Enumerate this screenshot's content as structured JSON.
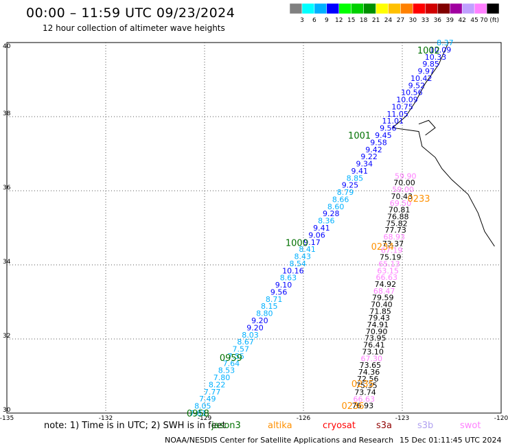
{
  "header": {
    "title": "00:00 – 11:59 UTC 09/23/2024",
    "subtitle": "12 hour collection of altimeter wave heights"
  },
  "colorbar": {
    "labels": [
      "3",
      "6",
      "9",
      "12",
      "15",
      "18",
      "21",
      "24",
      "27",
      "30",
      "33",
      "36",
      "39",
      "42",
      "45",
      "70 (ft)"
    ],
    "colors": [
      "#808080",
      "#00ffff",
      "#00b0ff",
      "#0000ff",
      "#00ff00",
      "#00d000",
      "#009000",
      "#ffff00",
      "#ffc000",
      "#ff8000",
      "#ff0000",
      "#d00000",
      "#800000",
      "#a000a0",
      "#c0a0ff",
      "#ff80ff",
      "#000000"
    ]
  },
  "footer": {
    "note": "note:  1) Time is in UTC;  2) SWH is in feet",
    "satellites": [
      {
        "name": "jason3",
        "color": "#007000"
      },
      {
        "name": "altika",
        "color": "#ff9000"
      },
      {
        "name": "cryosat",
        "color": "#ff0000"
      },
      {
        "name": "s3a",
        "color": "#900000"
      },
      {
        "name": "s3b",
        "color": "#b0a0f0"
      },
      {
        "name": "swot",
        "color": "#ff80ff"
      }
    ],
    "credit": "NOAA/NESDIS Center for Satellite Applications and Research",
    "timestamp": "15 Dec 01:11:45 UTC 2024"
  },
  "chart_data": {
    "type": "scatter",
    "title": "00:00 – 11:59 UTC 09/23/2024",
    "xlim": [
      -135,
      -120
    ],
    "ylim": [
      30,
      40
    ],
    "x_ticks": [
      "-135",
      "-132",
      "-129",
      "-126",
      "-123",
      "-120"
    ],
    "y_ticks": [
      "30",
      "32",
      "34",
      "36",
      "38",
      "40"
    ],
    "grid": true,
    "series": [
      {
        "name": "jason3",
        "start": [
          -129.2,
          30.0
        ],
        "end": [
          -121.7,
          40.0
        ],
        "values": [
          7.81,
          8.05,
          7.49,
          7.77,
          8.22,
          7.8,
          8.53,
          7.64,
          7.55,
          7.57,
          8.67,
          8.03,
          9.2,
          9.2,
          8.8,
          8.15,
          8.71,
          9.56,
          9.1,
          8.63,
          10.16,
          8.54,
          8.43,
          8.41,
          9.17,
          9.06,
          9.41,
          8.36,
          9.28,
          8.6,
          8.66,
          8.79,
          9.25,
          8.85,
          9.41,
          9.34,
          9.22,
          9.42,
          9.58,
          9.45,
          9.56,
          11.01,
          11.05,
          10.75,
          10.09,
          10.56,
          9.52,
          10.42,
          9.97,
          9.85,
          10.33,
          10.09,
          8.37
        ],
        "time_labels": [
          {
            "text": "0958",
            "lon": -129.2,
            "lat": 30.0
          },
          {
            "text": "0959",
            "lon": -128.2,
            "lat": 31.5
          },
          {
            "text": "1000",
            "lon": -126.2,
            "lat": 34.6
          },
          {
            "text": "1001",
            "lon": -124.3,
            "lat": 37.5
          },
          {
            "text": "1002",
            "lon": -122.2,
            "lat": 39.8
          }
        ]
      },
      {
        "name": "swot",
        "start": [
          -124.2,
          30.2
        ],
        "end": [
          -122.9,
          36.4
        ],
        "values": [
          76.93,
          66.63,
          73.74,
          75.35,
          72.56,
          74.36,
          73.65,
          67.3,
          73.1,
          76.41,
          73.95,
          70.9,
          74.91,
          79.43,
          71.85,
          70.4,
          79.59,
          68.47,
          74.92,
          66.63,
          63.15,
          65.13,
          75.19,
          67.19,
          73.37,
          68.93,
          77.73,
          75.82,
          76.88,
          70.81,
          69.5,
          70.43,
          59.0,
          70.0,
          59.9
        ],
        "time_labels": [
          {
            "text": "0233",
            "lon": -122.5,
            "lat": 35.8
          },
          {
            "text": "0234",
            "lon": -123.6,
            "lat": 34.5
          },
          {
            "text": "0235",
            "lon": -124.2,
            "lat": 30.8
          },
          {
            "text": "0236",
            "lon": -124.5,
            "lat": 30.2
          }
        ]
      }
    ]
  }
}
